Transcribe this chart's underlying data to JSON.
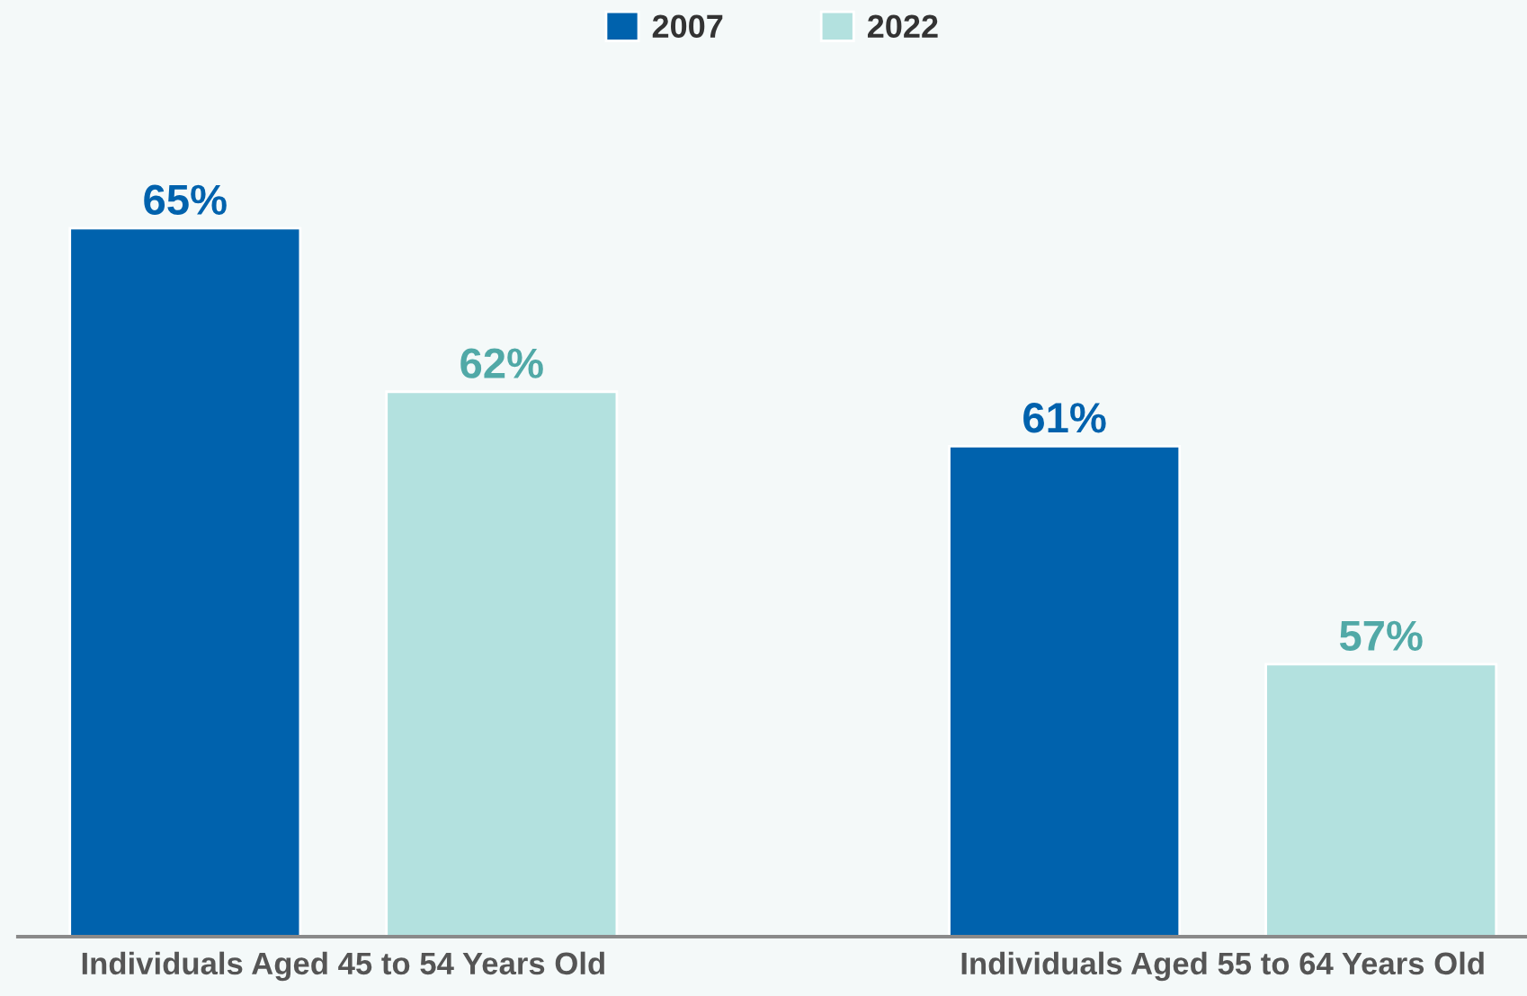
{
  "chart_data": {
    "type": "bar",
    "categories": [
      "Individuals Aged 45 to 54 Years Old",
      "Individuals Aged 55 to 64 Years Old"
    ],
    "series": [
      {
        "name": "2007",
        "color": "#0062ad",
        "values": [
          65,
          61
        ],
        "value_labels": [
          "65%",
          "61%"
        ]
      },
      {
        "name": "2022",
        "color": "#b3e1df",
        "values": [
          62,
          57
        ],
        "value_labels": [
          "62%",
          "57%"
        ]
      }
    ],
    "tick_labels": "x",
    "legend": "top",
    "grid": false
  }
}
